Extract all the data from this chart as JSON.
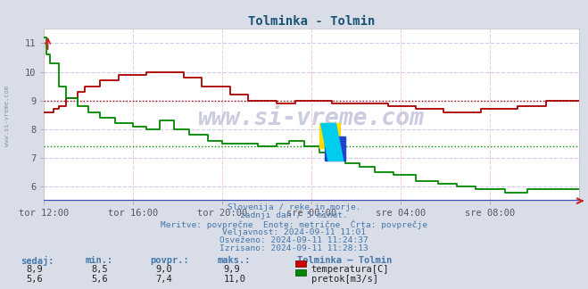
{
  "title": "Tolminka - Tolmin",
  "title_color": "#1a5276",
  "bg_color": "#d8dde8",
  "plot_bg_color": "#ffffff",
  "x_labels": [
    "tor 12:00",
    "tor 16:00",
    "tor 20:00",
    "sre 00:00",
    "sre 04:00",
    "sre 08:00"
  ],
  "x_ticks": [
    0,
    48,
    96,
    144,
    192,
    240
  ],
  "x_max": 288,
  "y_min": 5.5,
  "y_max": 11.5,
  "y_ticks": [
    6,
    7,
    8,
    9,
    10,
    11
  ],
  "temp_color": "#aa0000",
  "flow_color": "#008800",
  "avg_temp": 9.0,
  "avg_flow": 7.4,
  "watermark": "www.si-vreme.com",
  "watermark_color": "#aaaacc",
  "info_color": "#4477aa",
  "text_lines": [
    "Slovenija / reke in morje.",
    "zadnji dan / 5 minut.",
    "Meritve: povprečne  Enote: metrične  Črta: povprečje",
    "Veljavnost: 2024-09-11 11:01",
    "Osveženo: 2024-09-11 11:24:37",
    "Izrisano: 2024-09-11 11:28:13"
  ],
  "table_headers": [
    "sedaj:",
    "min.:",
    "povpr.:",
    "maks.:"
  ],
  "table_row1": [
    "8,9",
    "8,5",
    "9,0",
    "9,9"
  ],
  "table_row2": [
    "5,6",
    "5,6",
    "7,4",
    "11,0"
  ],
  "station_label": "Tolminka – Tolmin",
  "legend_temp": "temperatura[C]",
  "legend_flow": "pretok[m3/s]",
  "vgrid_color": "#ffcccc",
  "hgrid_color": "#ccccee"
}
